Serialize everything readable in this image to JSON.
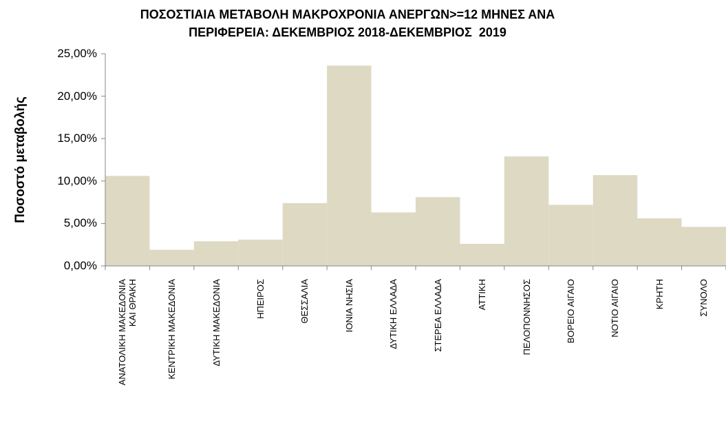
{
  "chart_data": {
    "type": "bar",
    "title": "ΠΟΣΟΣΤΙΑΙΑ ΜΕΤΑΒΟΛΗ ΜΑΚΡΟΧΡΟΝΙΑ ΑΝΕΡΓΩΝ>=12 ΜΗΝΕΣ ΑΝΑ\nΠΕΡΙΦΕΡΕΙΑ: ΔΕΚΕΜΒΡΙΟΣ 2018-ΔΕΚΕΜΒΡΙΟΣ  2019",
    "y_label": "Ποσοστό μεταβολής",
    "categories": [
      "ΑΝΑΤΟΛΙΚΗ ΜΑΚΕΔΟΝΙΑ\nΚΑΙ ΘΡΑΚΗ",
      "ΚΕΝΤΡΙΚΗ ΜΑΚΕΔΟΝΙΑ",
      "ΔΥΤΙΚΗ ΜΑΚΕΔΟΝΙΑ",
      "ΗΠΕΙΡΟΣ",
      "ΘΕΣΣΑΛΙΑ",
      "ΙΟΝΙΑ ΝΗΣΙΑ",
      "ΔΥΤΙΚΗ ΕΛΛΑΔΑ",
      "ΣΤΕΡΕΑ ΕΛΛΑΔΑ",
      "ΑΤΤΙΚΗ",
      "ΠΕΛΟΠΟΝΝΗΣΟΣ",
      "ΒΟΡΕΙΟ ΑΙΓΑΙΟ",
      "ΝΟΤΙΟ ΑΙΓΑΙΟ",
      "ΚΡΗΤΗ",
      "ΣΥΝΟΛΟ"
    ],
    "values": [
      10.6,
      1.9,
      2.9,
      3.1,
      7.4,
      23.6,
      6.3,
      8.1,
      2.6,
      12.9,
      7.2,
      10.7,
      5.6,
      4.6
    ],
    "color": "#ddd9c3",
    "ylim": [
      0,
      25
    ],
    "yticks": [
      {
        "value": 0,
        "label": "0,00%"
      },
      {
        "value": 5,
        "label": "5,00%"
      },
      {
        "value": 10,
        "label": "10,00%"
      },
      {
        "value": 15,
        "label": "15,00%"
      },
      {
        "value": 20,
        "label": "20,00%"
      },
      {
        "value": 25,
        "label": "25,00%"
      }
    ],
    "grid": false
  }
}
